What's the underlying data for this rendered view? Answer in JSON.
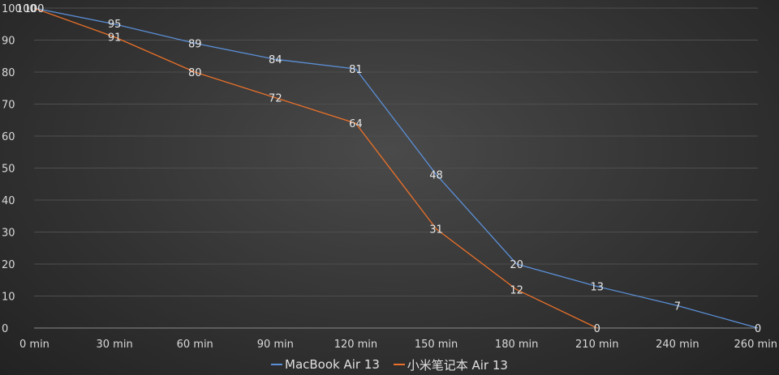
{
  "chart_data": {
    "type": "line",
    "categories": [
      "0 min",
      "30 min",
      "60 min",
      "90 min",
      "120 min",
      "150 min",
      "180 min",
      "210 min",
      "240 min",
      "260 min"
    ],
    "series": [
      {
        "name": "MacBook Air 13",
        "color": "#5b8fd6",
        "values": [
          100,
          95,
          89,
          84,
          81,
          48,
          20,
          13,
          7,
          0
        ]
      },
      {
        "name": "小米笔记本 Air 13",
        "color": "#e8702a",
        "values": [
          100,
          91,
          80,
          72,
          64,
          31,
          12,
          0,
          null,
          null
        ]
      }
    ],
    "y_ticks": [
      "0",
      "10",
      "20",
      "30",
      "40",
      "50",
      "60",
      "70",
      "80",
      "90",
      "100"
    ],
    "ylim": [
      0,
      100
    ],
    "grid": true,
    "legend_position": "bottom"
  }
}
